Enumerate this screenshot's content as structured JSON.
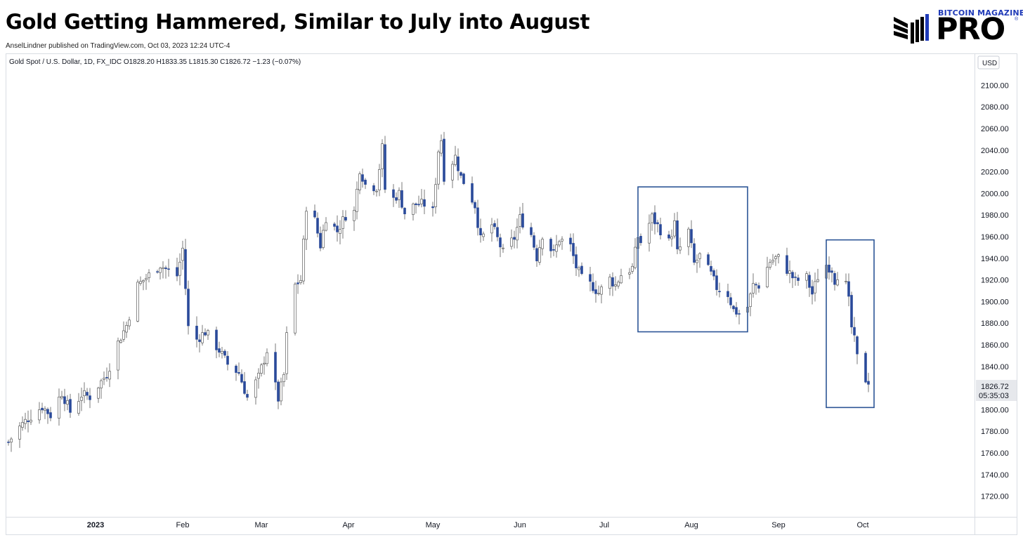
{
  "header": {
    "title": "Gold Getting Hammered, Similar to July into August",
    "published": "AnselLindner published on TradingView.com, Oct 03, 2023 12:24 UTC-4"
  },
  "logo": {
    "top_text": "BITCOIN MAGAZINE",
    "main_text": "PRO",
    "registered": "®",
    "icon": "bitcoin-magazine-bars-icon",
    "accent": "#1f3ab8"
  },
  "colors": {
    "up_candle": "#ffffff",
    "down_candle": "#2a4a9a",
    "wick": "#7a7a7a",
    "highlight_box": "#2c5596"
  },
  "chart_data": {
    "type": "candlestick",
    "legend": "Gold Spot / U.S. Dollar, 1D, FX_IDC  O1828.20  H1833.35  L1815.30  C1826.72  −1.23 (−0.07%)",
    "currency": "USD",
    "ylim": [
      1710,
      2110
    ],
    "y_ticks": [
      "2100.00",
      "2080.00",
      "2060.00",
      "2040.00",
      "2020.00",
      "2000.00",
      "1980.00",
      "1960.00",
      "1940.00",
      "1920.00",
      "1900.00",
      "1880.00",
      "1860.00",
      "1840.00",
      "1820.00",
      "1800.00",
      "1780.00",
      "1760.00",
      "1740.00",
      "1720.00"
    ],
    "x_ticks": [
      {
        "label": "2023",
        "date": "2023-01-01",
        "bold": true
      },
      {
        "label": "Feb",
        "date": "2023-02-01"
      },
      {
        "label": "Mar",
        "date": "2023-03-01"
      },
      {
        "label": "Apr",
        "date": "2023-04-01"
      },
      {
        "label": "May",
        "date": "2023-05-01"
      },
      {
        "label": "Jun",
        "date": "2023-06-01"
      },
      {
        "label": "Jul",
        "date": "2023-07-01"
      },
      {
        "label": "Aug",
        "date": "2023-08-01"
      },
      {
        "label": "Sep",
        "date": "2023-09-01"
      },
      {
        "label": "Oct",
        "date": "2023-10-01"
      }
    ],
    "last_price": "1826.72",
    "countdown": "05:35:03",
    "highlight_boxes": [
      {
        "from": "2023-07-13",
        "to": "2023-08-21",
        "y_top": 2006,
        "y_bottom": 1872
      },
      {
        "from": "2023-09-18",
        "to": "2023-10-05",
        "y_top": 1957,
        "y_bottom": 1802
      }
    ],
    "close_path": [
      [
        "2022-12-01",
        1770
      ],
      [
        "2022-12-05",
        1784
      ],
      [
        "2022-12-08",
        1792
      ],
      [
        "2022-12-13",
        1803
      ],
      [
        "2022-12-16",
        1795
      ],
      [
        "2022-12-20",
        1816
      ],
      [
        "2022-12-23",
        1798
      ],
      [
        "2022-12-27",
        1814
      ],
      [
        "2022-12-30",
        1812
      ],
      [
        "2023-01-03",
        1826
      ],
      [
        "2023-01-05",
        1833
      ],
      [
        "2023-01-09",
        1862
      ],
      [
        "2023-01-12",
        1878
      ],
      [
        "2023-01-16",
        1915
      ],
      [
        "2023-01-19",
        1922
      ],
      [
        "2023-01-24",
        1934
      ],
      [
        "2023-01-26",
        1930
      ],
      [
        "2023-01-30",
        1924
      ],
      [
        "2023-02-01",
        1949
      ],
      [
        "2023-02-03",
        1876
      ],
      [
        "2023-02-06",
        1865
      ],
      [
        "2023-02-09",
        1872
      ],
      [
        "2023-02-14",
        1855
      ],
      [
        "2023-02-17",
        1842
      ],
      [
        "2023-02-21",
        1834
      ],
      [
        "2023-02-24",
        1811
      ],
      [
        "2023-02-28",
        1830
      ],
      [
        "2023-03-03",
        1855
      ],
      [
        "2023-03-07",
        1810
      ],
      [
        "2023-03-09",
        1832
      ],
      [
        "2023-03-10",
        1868
      ],
      [
        "2023-03-13",
        1915
      ],
      [
        "2023-03-15",
        1920
      ],
      [
        "2023-03-17",
        1988
      ],
      [
        "2023-03-20",
        1975
      ],
      [
        "2023-03-22",
        1952
      ],
      [
        "2023-03-24",
        1978
      ],
      [
        "2023-03-28",
        1965
      ],
      [
        "2023-03-31",
        1980
      ],
      [
        "2023-04-03",
        1983
      ],
      [
        "2023-04-05",
        2023
      ],
      [
        "2023-04-07",
        2008
      ],
      [
        "2023-04-11",
        2006
      ],
      [
        "2023-04-13",
        2042
      ],
      [
        "2023-04-14",
        2004
      ],
      [
        "2023-04-17",
        1995
      ],
      [
        "2023-04-19",
        2000
      ],
      [
        "2023-04-21",
        1982
      ],
      [
        "2023-04-25",
        1990
      ],
      [
        "2023-04-28",
        1990
      ],
      [
        "2023-05-01",
        1983
      ],
      [
        "2023-05-03",
        2040
      ],
      [
        "2023-05-04",
        2050
      ],
      [
        "2023-05-05",
        2016
      ],
      [
        "2023-05-09",
        2034
      ],
      [
        "2023-05-11",
        2015
      ],
      [
        "2023-05-12",
        2011
      ],
      [
        "2023-05-16",
        1989
      ],
      [
        "2023-05-18",
        1957
      ],
      [
        "2023-05-22",
        1971
      ],
      [
        "2023-05-24",
        1958
      ],
      [
        "2023-05-26",
        1945
      ],
      [
        "2023-05-30",
        1959
      ],
      [
        "2023-06-01",
        1977
      ],
      [
        "2023-06-05",
        1962
      ],
      [
        "2023-06-07",
        1941
      ],
      [
        "2023-06-09",
        1962
      ],
      [
        "2023-06-13",
        1944
      ],
      [
        "2023-06-15",
        1958
      ],
      [
        "2023-06-19",
        1951
      ],
      [
        "2023-06-21",
        1932
      ],
      [
        "2023-06-23",
        1921
      ],
      [
        "2023-06-27",
        1914
      ],
      [
        "2023-06-29",
        1908
      ],
      [
        "2023-07-03",
        1921
      ],
      [
        "2023-07-05",
        1915
      ],
      [
        "2023-07-07",
        1925
      ],
      [
        "2023-07-11",
        1931
      ],
      [
        "2023-07-13",
        1960
      ],
      [
        "2023-07-14",
        1955
      ],
      [
        "2023-07-18",
        1978
      ],
      [
        "2023-07-20",
        1970
      ],
      [
        "2023-07-24",
        1955
      ],
      [
        "2023-07-26",
        1972
      ],
      [
        "2023-07-27",
        1945
      ],
      [
        "2023-07-31",
        1965
      ],
      [
        "2023-08-02",
        1935
      ],
      [
        "2023-08-04",
        1942
      ],
      [
        "2023-08-08",
        1925
      ],
      [
        "2023-08-10",
        1913
      ],
      [
        "2023-08-14",
        1907
      ],
      [
        "2023-08-16",
        1892
      ],
      [
        "2023-08-18",
        1889
      ],
      [
        "2023-08-21",
        1895
      ],
      [
        "2023-08-23",
        1915
      ],
      [
        "2023-08-25",
        1915
      ],
      [
        "2023-08-29",
        1937
      ],
      [
        "2023-08-31",
        1940
      ],
      [
        "2023-09-01",
        1940
      ],
      [
        "2023-09-05",
        1926
      ],
      [
        "2023-09-07",
        1919
      ],
      [
        "2023-09-11",
        1922
      ],
      [
        "2023-09-13",
        1907
      ],
      [
        "2023-09-15",
        1923
      ],
      [
        "2023-09-18",
        1934
      ],
      [
        "2023-09-20",
        1930
      ],
      [
        "2023-09-21",
        1920
      ],
      [
        "2023-09-22",
        1925
      ],
      [
        "2023-09-25",
        1915
      ],
      [
        "2023-09-26",
        1900
      ],
      [
        "2023-09-27",
        1876
      ],
      [
        "2023-09-28",
        1864
      ],
      [
        "2023-09-29",
        1848
      ],
      [
        "2023-10-02",
        1828
      ],
      [
        "2023-10-03",
        1826.72
      ]
    ]
  }
}
